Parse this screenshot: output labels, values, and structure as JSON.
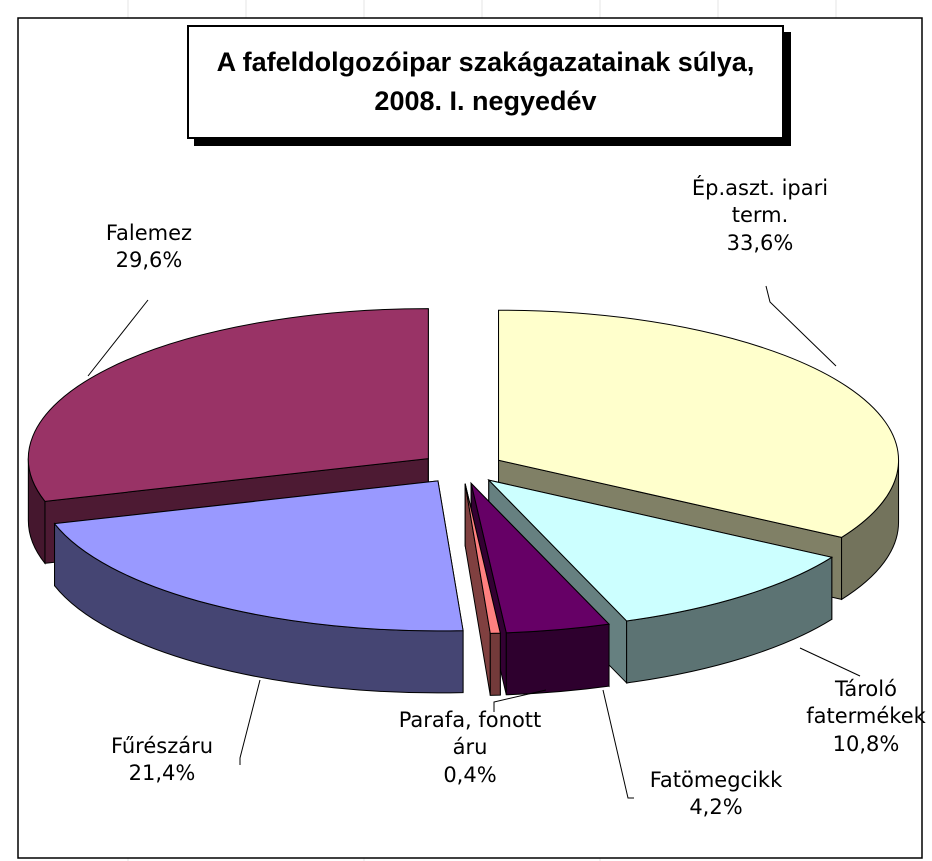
{
  "chart_data": {
    "type": "pie3d",
    "title": "A fafeldolgozóipar szakágazatainak súlya, 2008. I. negyedév",
    "categories": [
      "Ép.aszt. ipari term.",
      "Tároló fatermékek",
      "Fatömegcikk",
      "Parafa, fonott áru",
      "Fűrészáru",
      "Falemez"
    ],
    "values": [
      33.6,
      10.8,
      4.2,
      0.4,
      21.4,
      29.6
    ],
    "value_labels": [
      "33,6%",
      "10,8%",
      "4,2%",
      "0,4%",
      "21,4%",
      "29,6%"
    ],
    "colors": [
      "#ffffcc",
      "#ccffff",
      "#660066",
      "#ff8080",
      "#9999ff",
      "#993366"
    ]
  }
}
